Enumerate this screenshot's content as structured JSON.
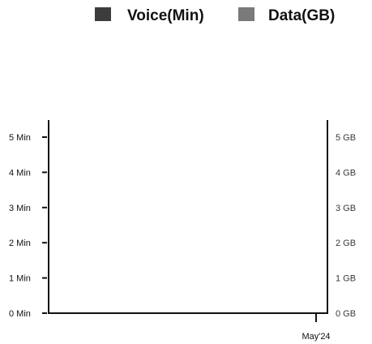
{
  "chart_data": {
    "type": "bar",
    "categories": [
      "May'24"
    ],
    "series": [
      {
        "name": "Voice(Min)",
        "values": [
          0
        ],
        "axis": "left",
        "color": "#3c3c3c"
      },
      {
        "name": "Data(GB)",
        "values": [
          0
        ],
        "axis": "right",
        "color": "#7a7a7a"
      }
    ],
    "y_left": {
      "ticks": [
        0,
        1,
        2,
        3,
        4,
        5
      ],
      "tick_labels": [
        "0 Min",
        "1 Min",
        "2 Min",
        "3 Min",
        "4 Min",
        "5 Min"
      ],
      "ylim": [
        0,
        5
      ]
    },
    "y_right": {
      "ticks": [
        0,
        1,
        2,
        3,
        4,
        5
      ],
      "tick_labels": [
        "0 GB",
        "1 GB",
        "2 GB",
        "3 GB",
        "4 GB",
        "5 GB"
      ],
      "ylim": [
        0,
        5
      ]
    },
    "legend": {
      "position": "top-right",
      "items": [
        "Voice(Min)",
        "Data(GB)"
      ]
    },
    "grid": false,
    "title": "",
    "xlabel": "",
    "ylabel": ""
  }
}
